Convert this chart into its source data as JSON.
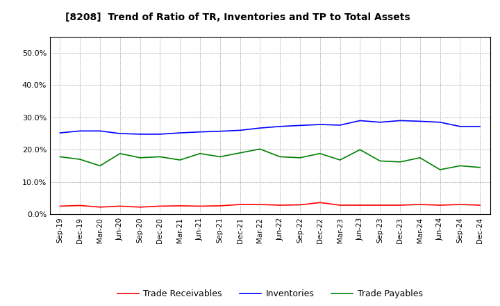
{
  "title": "[8208]  Trend of Ratio of TR, Inventories and TP to Total Assets",
  "xlabel": "",
  "ylabel": "",
  "ylim": [
    0.0,
    0.55
  ],
  "yticks": [
    0.0,
    0.1,
    0.2,
    0.3,
    0.4,
    0.5
  ],
  "x_labels": [
    "Sep-19",
    "Dec-19",
    "Mar-20",
    "Jun-20",
    "Sep-20",
    "Dec-20",
    "Mar-21",
    "Jun-21",
    "Sep-21",
    "Dec-21",
    "Mar-22",
    "Jun-22",
    "Sep-22",
    "Dec-22",
    "Mar-23",
    "Jun-23",
    "Sep-23",
    "Dec-23",
    "Mar-24",
    "Jun-24",
    "Sep-24",
    "Dec-24"
  ],
  "trade_receivables": [
    0.025,
    0.027,
    0.022,
    0.025,
    0.022,
    0.025,
    0.026,
    0.025,
    0.026,
    0.03,
    0.03,
    0.028,
    0.029,
    0.036,
    0.028,
    0.028,
    0.028,
    0.028,
    0.03,
    0.028,
    0.03,
    0.028
  ],
  "inventories": [
    0.252,
    0.258,
    0.258,
    0.25,
    0.248,
    0.248,
    0.252,
    0.255,
    0.257,
    0.26,
    0.267,
    0.272,
    0.275,
    0.278,
    0.276,
    0.29,
    0.285,
    0.29,
    0.288,
    0.285,
    0.272,
    0.272
  ],
  "trade_payables": [
    0.178,
    0.17,
    0.15,
    0.188,
    0.175,
    0.178,
    0.168,
    0.188,
    0.178,
    0.19,
    0.202,
    0.178,
    0.175,
    0.188,
    0.168,
    0.2,
    0.165,
    0.162,
    0.175,
    0.138,
    0.15,
    0.145
  ],
  "tr_color": "#ff0000",
  "inv_color": "#0000ff",
  "tp_color": "#008000",
  "legend_labels": [
    "Trade Receivables",
    "Inventories",
    "Trade Payables"
  ],
  "background_color": "#ffffff",
  "grid_color": "#999999"
}
